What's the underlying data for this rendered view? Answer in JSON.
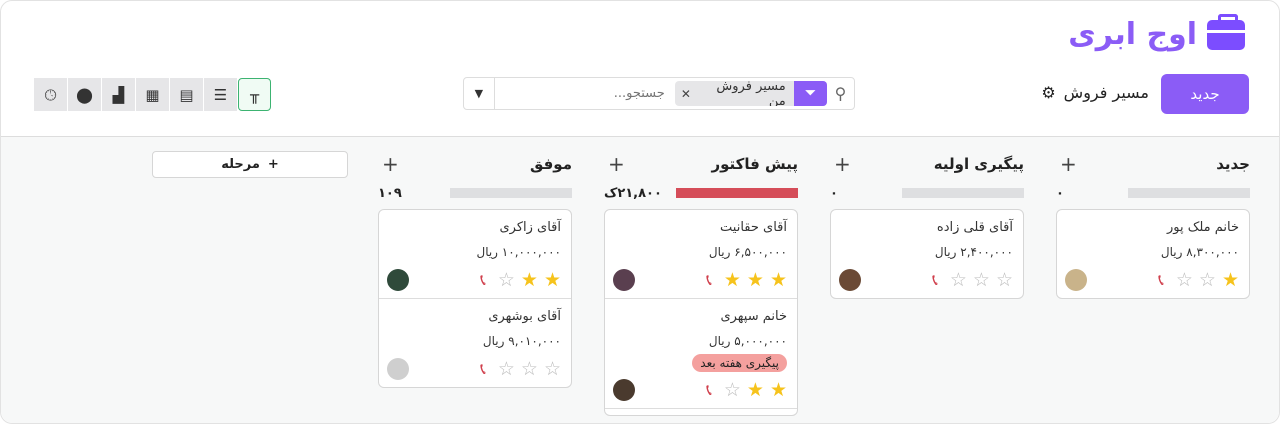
{
  "brand": {
    "logo_text": "اوج ابری",
    "accent": "#8b5cf6"
  },
  "header": {
    "new_label": "جدید",
    "pipeline_title": "مسیر فروش",
    "gear_icon": "gear-icon"
  },
  "search": {
    "facet_value": "مسیر فروش من",
    "placeholder": "جستجو...",
    "value": ""
  },
  "views": [
    "activity",
    "map",
    "graph",
    "pivot",
    "calendar",
    "list",
    "kanban"
  ],
  "add_stage_label": "مرحله",
  "columns": [
    {
      "title": "جدید",
      "count": "۰",
      "bar": "empty",
      "cards": [
        {
          "name": "خانم ملک پور",
          "price": "۸,۳۰۰,۰۰۰ ریال",
          "stars": 1,
          "avatar": "#c9b38a"
        }
      ]
    },
    {
      "title": "پیگیری اولیه",
      "count": "۰",
      "bar": "empty",
      "cards": [
        {
          "name": "آقای قلی زاده",
          "price": "۲,۴۰۰,۰۰۰ ریال",
          "stars": 0,
          "avatar": "#6b4a36"
        }
      ]
    },
    {
      "title": "پیش فاکتور",
      "count": "۲۱,۸۰۰ک",
      "bar": "red",
      "cards": [
        {
          "name": "آقای حقانیت",
          "price": "۶,۵۰۰,۰۰۰ ریال",
          "stars": 3,
          "avatar": "#5a3f4f"
        },
        {
          "name": "خانم سپهری",
          "price": "۵,۰۰۰,۰۰۰ ریال",
          "stars": 2,
          "tag": "پیگیری هفته بعد",
          "avatar": "#4a3a2e"
        },
        {
          "name": "",
          "price": "",
          "stars": null
        }
      ]
    },
    {
      "title": "موفق",
      "count": "۱۰۹",
      "bar": "empty",
      "cards": [
        {
          "name": "آقای زاکری",
          "price": "۱۰,۰۰۰,۰۰۰ ریال",
          "stars": 2,
          "avatar": "#2f4a3a"
        },
        {
          "name": "آقای بوشهری",
          "price": "۹,۰۱۰,۰۰۰ ریال",
          "stars": 0,
          "avatar": "#cfcfcf"
        }
      ]
    }
  ]
}
